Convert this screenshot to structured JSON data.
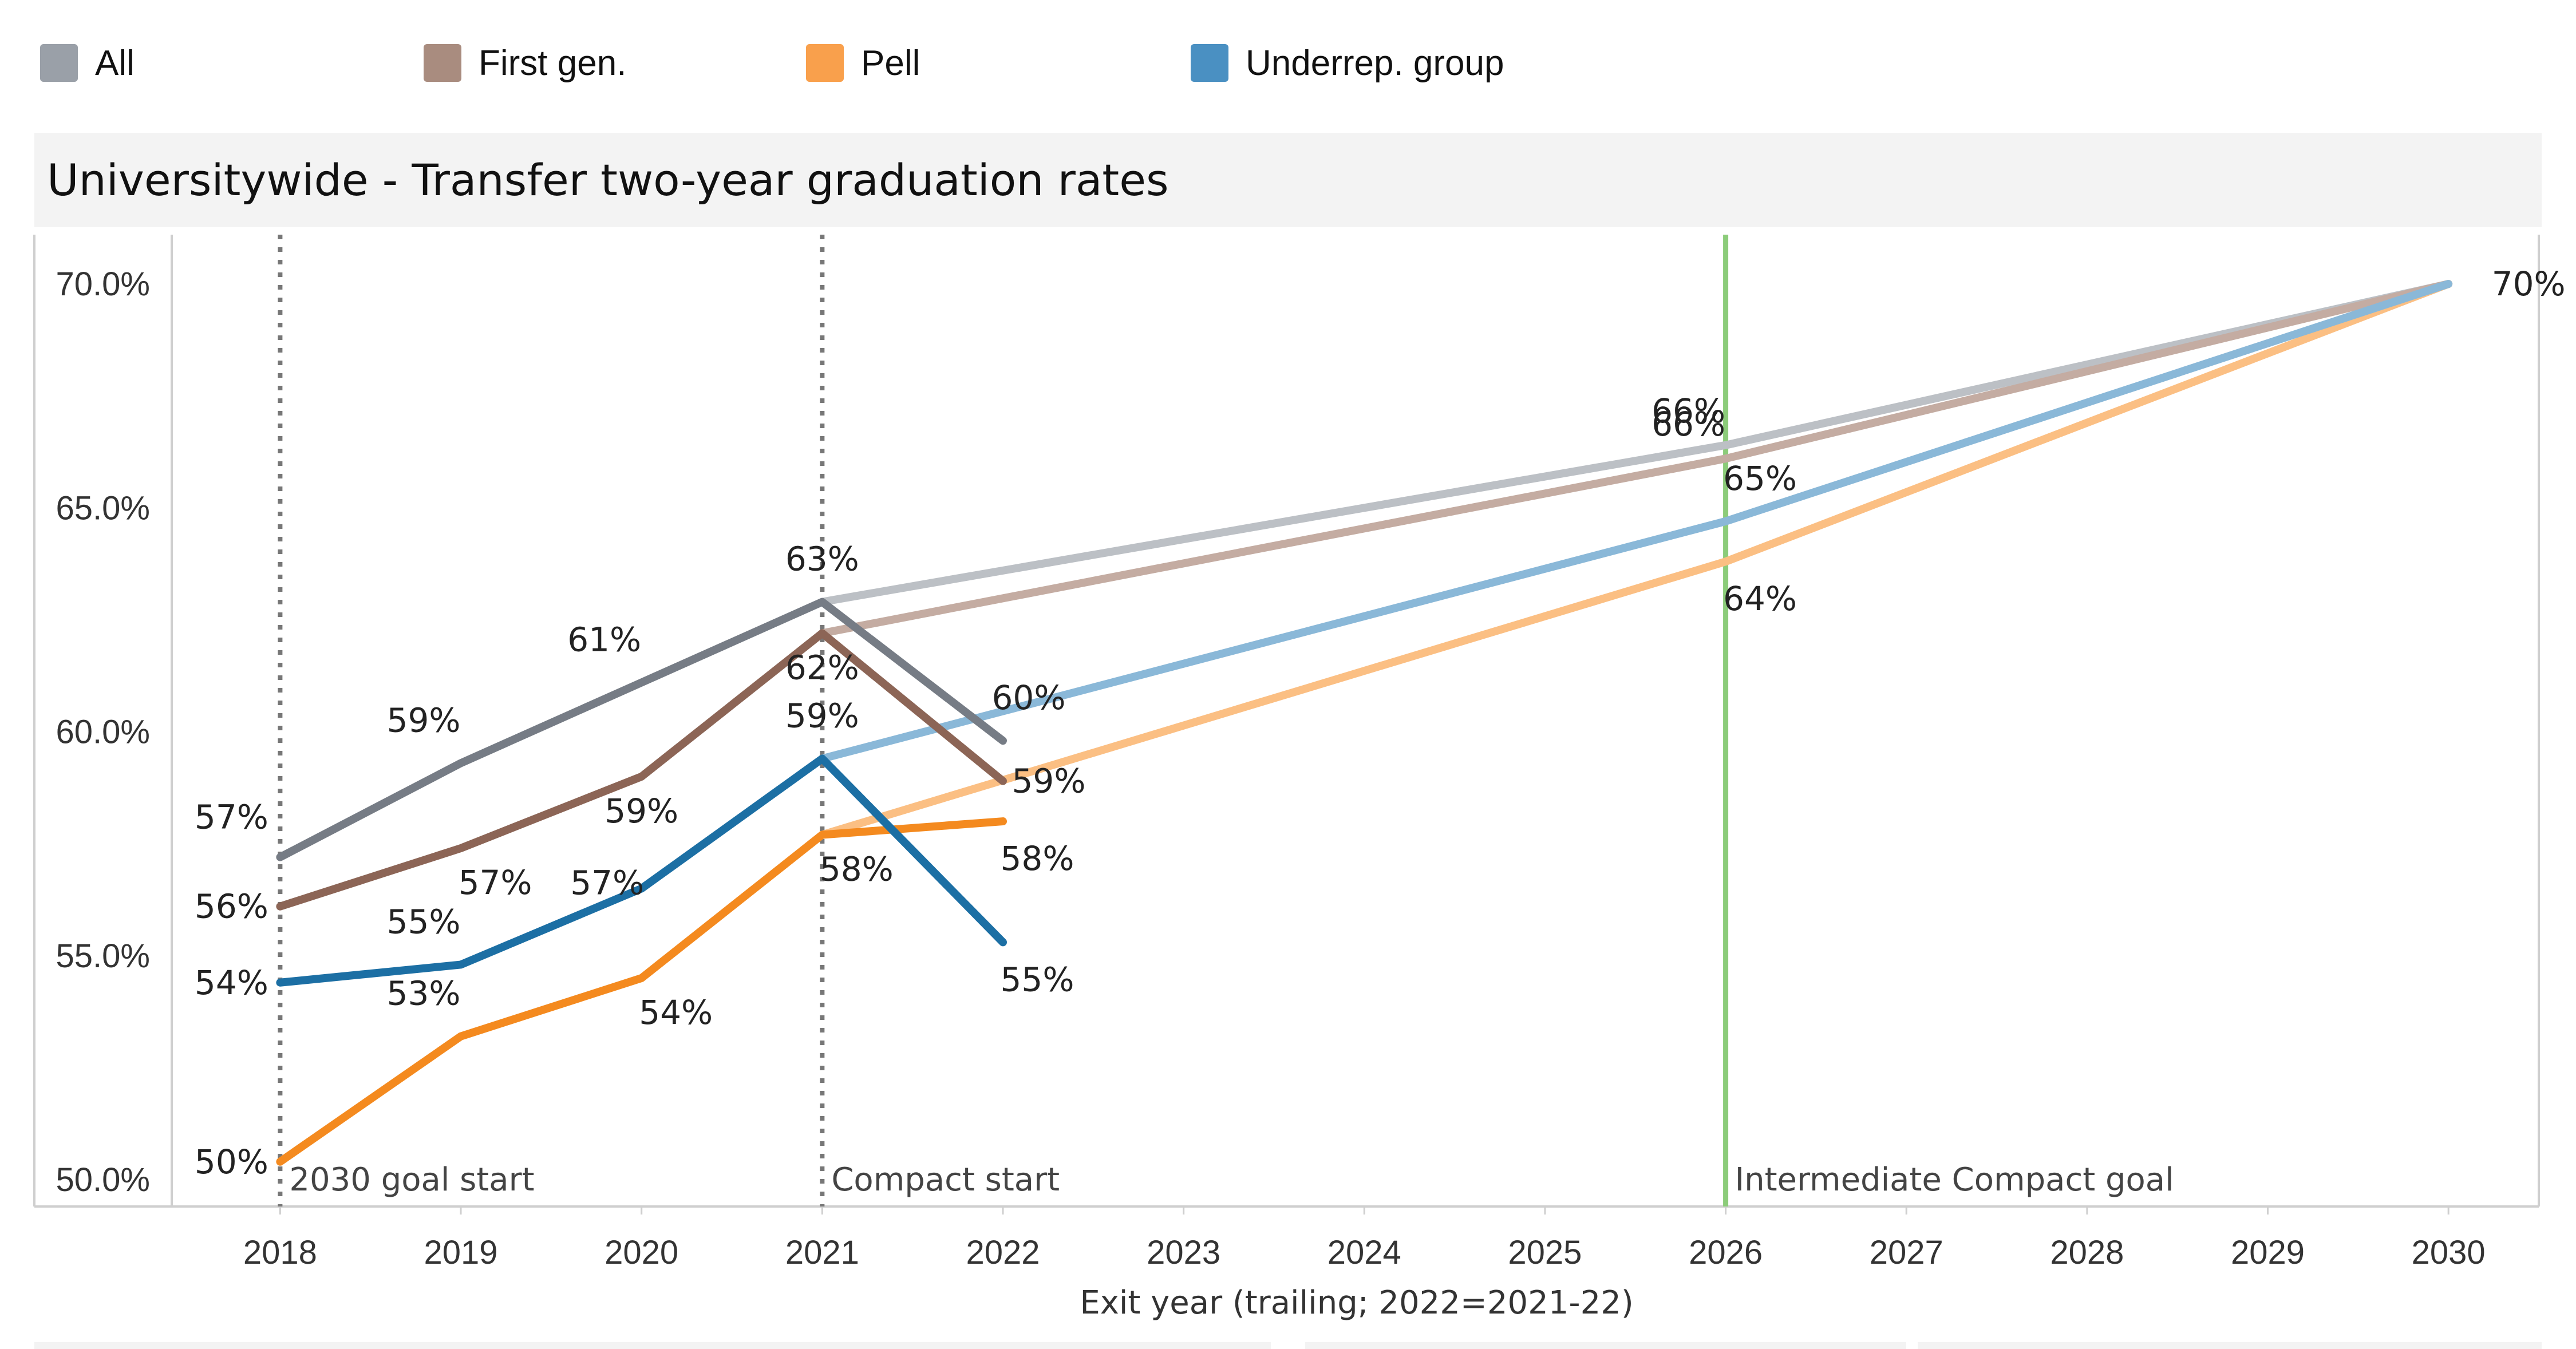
{
  "legend": [
    {
      "label": "All",
      "color": "#9aa0a8"
    },
    {
      "label": "First gen.",
      "color": "#a98c7f"
    },
    {
      "label": "Pell",
      "color": "#f9a04c"
    },
    {
      "label": "Underrep. group",
      "color": "#4a90c2"
    }
  ],
  "title": "Universitywide - Transfer two-year graduation rates",
  "chart_data": {
    "type": "line",
    "title": "Universitywide - Transfer two-year graduation rates",
    "xlabel": "Exit year (trailing; 2022=2021-22)",
    "ylabel": "",
    "x_ticks": [
      "2018",
      "2019",
      "2020",
      "2021",
      "2022",
      "2023",
      "2024",
      "2025",
      "2026",
      "2027",
      "2028",
      "2029",
      "2030"
    ],
    "y_ticks": [
      "50.0%",
      "55.0%",
      "60.0%",
      "65.0%",
      "70.0%"
    ],
    "xlim": [
      2017.4,
      2030.5
    ],
    "ylim": [
      49.4,
      71.1
    ],
    "grid": false,
    "legend_position": "top",
    "series": [
      {
        "name": "All",
        "color": "#767c85",
        "x": [
          2018,
          2019,
          2020,
          2021,
          2022
        ],
        "y": [
          57.2,
          59.3,
          61.1,
          62.9,
          59.8
        ],
        "labels": [
          "57%",
          "59%",
          "61%",
          "63%",
          "60%"
        ],
        "goal_color": "#bcc0c5",
        "goal_x": [
          2021,
          2026,
          2030
        ],
        "goal_y": [
          62.9,
          66.4,
          70.0
        ],
        "goal_labels": [
          "",
          "66%",
          "70%"
        ]
      },
      {
        "name": "First gen.",
        "color": "#8c6556",
        "x": [
          2018,
          2019,
          2020,
          2021,
          2022
        ],
        "y": [
          56.1,
          57.4,
          59.0,
          62.2,
          58.9
        ],
        "labels": [
          "56%",
          "57%",
          "59%",
          "62%",
          "59%"
        ],
        "goal_color": "#c4aca2",
        "goal_x": [
          2021,
          2026,
          2030
        ],
        "goal_y": [
          62.2,
          66.1,
          70.0
        ],
        "goal_labels": [
          "",
          "66%",
          ""
        ]
      },
      {
        "name": "Pell",
        "color": "#f48a1f",
        "x": [
          2018,
          2019,
          2020,
          2021,
          2022
        ],
        "y": [
          50.4,
          53.2,
          54.5,
          57.7,
          58.0
        ],
        "labels": [
          "50%",
          "53%",
          "54%",
          "58%",
          "58%"
        ],
        "goal_color": "#fbbf83",
        "goal_x": [
          2021,
          2026,
          2030
        ],
        "goal_y": [
          57.7,
          63.8,
          70.0
        ],
        "goal_labels": [
          "",
          "64%",
          ""
        ]
      },
      {
        "name": "Underrep. group",
        "color": "#1c6fa4",
        "x": [
          2018,
          2019,
          2020,
          2021,
          2022
        ],
        "y": [
          54.4,
          54.8,
          56.5,
          59.4,
          55.3
        ],
        "labels": [
          "54%",
          "55%",
          "57%",
          "59%",
          "55%"
        ],
        "goal_color": "#8ab8d8",
        "goal_x": [
          2021,
          2026,
          2030
        ],
        "goal_y": [
          59.4,
          64.7,
          70.0
        ],
        "goal_labels": [
          "",
          "65%",
          ""
        ]
      }
    ],
    "reference_lines": [
      {
        "x": 2018,
        "label": "2030 goal start",
        "style": "dotted",
        "color": "#777777"
      },
      {
        "x": 2021,
        "label": "Compact start",
        "style": "dotted",
        "color": "#777777"
      },
      {
        "x": 2026,
        "label": "Intermediate Compact goal",
        "style": "solid",
        "color": "#8ccc7a"
      }
    ]
  }
}
